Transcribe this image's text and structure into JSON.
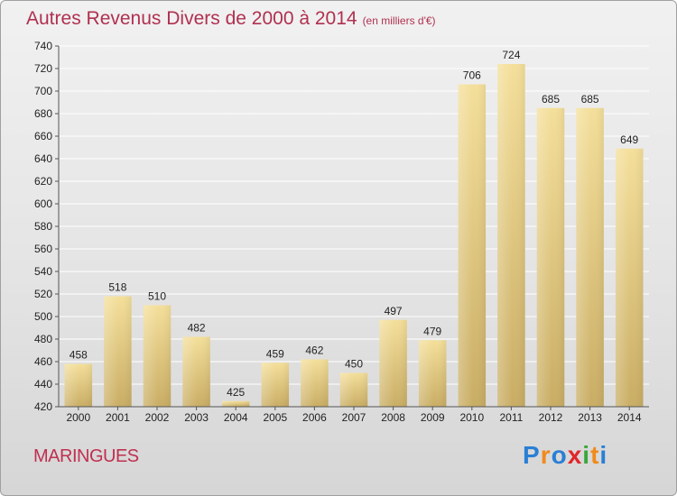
{
  "title": "Autres Revenus Divers de 2000 à 2014",
  "subtitle": "(en milliers d'€)",
  "commune": "MARINGUES",
  "logo": {
    "text": "Proxiti",
    "letters": [
      {
        "ch": "P",
        "color": "#2a7fd4"
      },
      {
        "ch": "r",
        "color": "#f08a1c"
      },
      {
        "ch": "o",
        "color": "#2a7fd4"
      },
      {
        "ch": "x",
        "color": "#e2262a"
      },
      {
        "ch": "i",
        "color": "#3aa63a"
      },
      {
        "ch": "t",
        "color": "#f08a1c"
      },
      {
        "ch": "i",
        "color": "#2a7fd4"
      }
    ]
  },
  "colors": {
    "title": "#b03050",
    "bar_light": "#f4df9a",
    "bar_dark": "#c9ad64",
    "grid": "#ffffff"
  },
  "chart_data": {
    "type": "bar",
    "categories": [
      "2000",
      "2001",
      "2002",
      "2003",
      "2004",
      "2005",
      "2006",
      "2007",
      "2008",
      "2009",
      "2010",
      "2011",
      "2012",
      "2013",
      "2014"
    ],
    "values": [
      458,
      518,
      510,
      482,
      425,
      459,
      462,
      450,
      497,
      479,
      706,
      724,
      685,
      685,
      649
    ],
    "title": "Autres Revenus Divers de 2000 à 2014",
    "ylim": [
      420,
      740
    ],
    "yticks": [
      420,
      440,
      460,
      480,
      500,
      520,
      540,
      560,
      580,
      600,
      620,
      640,
      660,
      680,
      700,
      720,
      740
    ],
    "grid": true,
    "legend": "none"
  }
}
